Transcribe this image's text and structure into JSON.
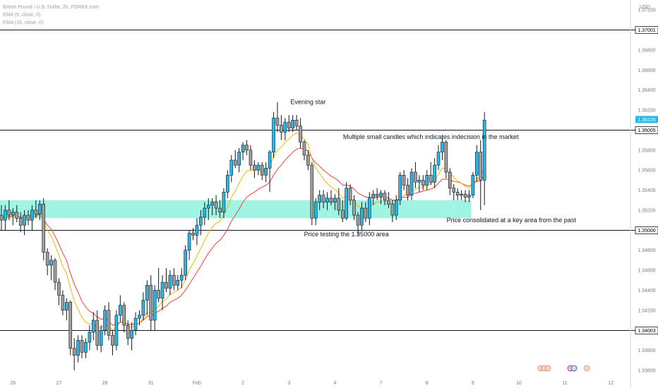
{
  "legend": {
    "symbol": "British Pound / U.S. Dollar, 2h, FOREX.com",
    "ema_fast": "EMA (9, close, 0)",
    "ema_slow": "EMA (18, close, 0)"
  },
  "axis": {
    "currency": "USD"
  },
  "colors": {
    "bull": "#26b8e8",
    "bear": "#9e9e9e",
    "wick": "#131722",
    "ema_fast": "#f5b800",
    "ema_slow": "#f44336",
    "zone": "#7ff0d8",
    "line": "#131722",
    "current": "#26b8e8"
  },
  "chart_data": {
    "type": "candlestick",
    "ylim": [
      1.3355,
      1.373
    ],
    "y_ticks": [
      "1.37200",
      "1.37001",
      "1.36800",
      "1.36600",
      "1.36400",
      "1.36200",
      "1.36106",
      "1.36005",
      "1.35800",
      "1.35600",
      "1.35400",
      "1.35200",
      "1.35000",
      "1.34800",
      "1.34600",
      "1.34400",
      "1.34200",
      "1.34003",
      "1.33800",
      "1.33600"
    ],
    "y_tick_values": [
      1.372,
      1.37001,
      1.368,
      1.366,
      1.364,
      1.362,
      1.36106,
      1.36005,
      1.358,
      1.356,
      1.354,
      1.352,
      1.35,
      1.348,
      1.346,
      1.344,
      1.342,
      1.34003,
      1.338,
      1.336
    ],
    "x_ticks": [
      {
        "label": "26",
        "bar": 3
      },
      {
        "label": "27",
        "bar": 15
      },
      {
        "label": "28",
        "bar": 27
      },
      {
        "label": "31",
        "bar": 39
      },
      {
        "label": "Feb",
        "bar": 51
      },
      {
        "label": "2",
        "bar": 63
      },
      {
        "label": "3",
        "bar": 75
      },
      {
        "label": "4",
        "bar": 87
      },
      {
        "label": "7",
        "bar": 99
      },
      {
        "label": "8",
        "bar": 111
      },
      {
        "label": "9",
        "bar": 123
      },
      {
        "label": "10",
        "bar": 135
      },
      {
        "label": "11",
        "bar": 147
      },
      {
        "label": "12",
        "bar": 159
      }
    ],
    "horizontal_levels": [
      {
        "label": "1.37001",
        "value": 1.37001
      },
      {
        "label": "1.36005",
        "value": 1.36005
      },
      {
        "label": "1.35000",
        "value": 1.35
      },
      {
        "label": "1.34003",
        "value": 1.34003
      }
    ],
    "current_price": {
      "label": "1.36106",
      "value": 1.36106
    },
    "zone": {
      "from": 1.3512,
      "to": 1.353,
      "bar_start": -1,
      "bar_end": 122
    },
    "annotations": [
      {
        "text": "Evening star",
        "bar": 80,
        "value": 1.3626
      },
      {
        "text": "Multiple small candles which indicates indecision in the market",
        "bar": 112,
        "value": 1.3591
      },
      {
        "text": "Price consolidated at a key area from the past",
        "bar": 133,
        "value": 1.3508
      },
      {
        "text": "Price testing the 1.35000 area",
        "bar": 90,
        "value": 1.3494
      }
    ],
    "candles": [
      {
        "o": 1.3515,
        "h": 1.3525,
        "l": 1.35,
        "c": 1.351
      },
      {
        "o": 1.351,
        "h": 1.3525,
        "l": 1.35,
        "c": 1.352
      },
      {
        "o": 1.352,
        "h": 1.353,
        "l": 1.351,
        "c": 1.3515
      },
      {
        "o": 1.3515,
        "h": 1.3522,
        "l": 1.3505,
        "c": 1.3518
      },
      {
        "o": 1.3518,
        "h": 1.3525,
        "l": 1.3508,
        "c": 1.3512
      },
      {
        "o": 1.3512,
        "h": 1.3518,
        "l": 1.3498,
        "c": 1.3505
      },
      {
        "o": 1.3505,
        "h": 1.352,
        "l": 1.3495,
        "c": 1.3515
      },
      {
        "o": 1.3515,
        "h": 1.352,
        "l": 1.3505,
        "c": 1.351
      },
      {
        "o": 1.351,
        "h": 1.3525,
        "l": 1.35,
        "c": 1.352
      },
      {
        "o": 1.352,
        "h": 1.353,
        "l": 1.3512,
        "c": 1.3516
      },
      {
        "o": 1.3516,
        "h": 1.353,
        "l": 1.351,
        "c": 1.3526
      },
      {
        "o": 1.3526,
        "h": 1.3532,
        "l": 1.347,
        "c": 1.3478
      },
      {
        "o": 1.3478,
        "h": 1.3482,
        "l": 1.3455,
        "c": 1.3465
      },
      {
        "o": 1.3465,
        "h": 1.3475,
        "l": 1.345,
        "c": 1.347
      },
      {
        "o": 1.347,
        "h": 1.3472,
        "l": 1.344,
        "c": 1.3448
      },
      {
        "o": 1.3448,
        "h": 1.3452,
        "l": 1.3425,
        "c": 1.3435
      },
      {
        "o": 1.3435,
        "h": 1.344,
        "l": 1.3415,
        "c": 1.342
      },
      {
        "o": 1.342,
        "h": 1.3432,
        "l": 1.341,
        "c": 1.3428
      },
      {
        "o": 1.3428,
        "h": 1.343,
        "l": 1.3375,
        "c": 1.3382
      },
      {
        "o": 1.3382,
        "h": 1.3392,
        "l": 1.336,
        "c": 1.3375
      },
      {
        "o": 1.3375,
        "h": 1.3395,
        "l": 1.3368,
        "c": 1.339
      },
      {
        "o": 1.339,
        "h": 1.3395,
        "l": 1.3372,
        "c": 1.3378
      },
      {
        "o": 1.3378,
        "h": 1.3392,
        "l": 1.3372,
        "c": 1.3388
      },
      {
        "o": 1.3388,
        "h": 1.3405,
        "l": 1.338,
        "c": 1.3398
      },
      {
        "o": 1.3398,
        "h": 1.3418,
        "l": 1.339,
        "c": 1.341
      },
      {
        "o": 1.341,
        "h": 1.342,
        "l": 1.338,
        "c": 1.3385
      },
      {
        "o": 1.3385,
        "h": 1.3405,
        "l": 1.3378,
        "c": 1.34
      },
      {
        "o": 1.34,
        "h": 1.3425,
        "l": 1.3395,
        "c": 1.342
      },
      {
        "o": 1.342,
        "h": 1.3428,
        "l": 1.339,
        "c": 1.3395
      },
      {
        "o": 1.3395,
        "h": 1.34,
        "l": 1.3375,
        "c": 1.3385
      },
      {
        "o": 1.3385,
        "h": 1.342,
        "l": 1.338,
        "c": 1.3415
      },
      {
        "o": 1.3415,
        "h": 1.3435,
        "l": 1.3408,
        "c": 1.3425
      },
      {
        "o": 1.3425,
        "h": 1.3428,
        "l": 1.3398,
        "c": 1.3405
      },
      {
        "o": 1.3405,
        "h": 1.341,
        "l": 1.3385,
        "c": 1.3392
      },
      {
        "o": 1.3392,
        "h": 1.3408,
        "l": 1.338,
        "c": 1.34
      },
      {
        "o": 1.34,
        "h": 1.3418,
        "l": 1.3395,
        "c": 1.3412
      },
      {
        "o": 1.3412,
        "h": 1.342,
        "l": 1.3405,
        "c": 1.3415
      },
      {
        "o": 1.3415,
        "h": 1.3438,
        "l": 1.341,
        "c": 1.343
      },
      {
        "o": 1.343,
        "h": 1.345,
        "l": 1.3415,
        "c": 1.3445
      },
      {
        "o": 1.3445,
        "h": 1.3455,
        "l": 1.34,
        "c": 1.341
      },
      {
        "o": 1.341,
        "h": 1.3445,
        "l": 1.34,
        "c": 1.344
      },
      {
        "o": 1.344,
        "h": 1.3462,
        "l": 1.3428,
        "c": 1.3432
      },
      {
        "o": 1.3432,
        "h": 1.3455,
        "l": 1.342,
        "c": 1.3448
      },
      {
        "o": 1.3448,
        "h": 1.3462,
        "l": 1.3438,
        "c": 1.3442
      },
      {
        "o": 1.3442,
        "h": 1.346,
        "l": 1.3435,
        "c": 1.3455
      },
      {
        "o": 1.3455,
        "h": 1.3462,
        "l": 1.344,
        "c": 1.3445
      },
      {
        "o": 1.3445,
        "h": 1.3455,
        "l": 1.344,
        "c": 1.345
      },
      {
        "o": 1.345,
        "h": 1.3462,
        "l": 1.3442,
        "c": 1.3455
      },
      {
        "o": 1.3455,
        "h": 1.3485,
        "l": 1.345,
        "c": 1.348
      },
      {
        "o": 1.348,
        "h": 1.35,
        "l": 1.347,
        "c": 1.3497
      },
      {
        "o": 1.3497,
        "h": 1.3502,
        "l": 1.349,
        "c": 1.3495
      },
      {
        "o": 1.3495,
        "h": 1.3512,
        "l": 1.3485,
        "c": 1.3505
      },
      {
        "o": 1.3505,
        "h": 1.352,
        "l": 1.3495,
        "c": 1.3513
      },
      {
        "o": 1.3513,
        "h": 1.3528,
        "l": 1.3505,
        "c": 1.3522
      },
      {
        "o": 1.3522,
        "h": 1.3532,
        "l": 1.351,
        "c": 1.3525
      },
      {
        "o": 1.3525,
        "h": 1.3532,
        "l": 1.3515,
        "c": 1.3528
      },
      {
        "o": 1.3528,
        "h": 1.3535,
        "l": 1.3515,
        "c": 1.3522
      },
      {
        "o": 1.3522,
        "h": 1.353,
        "l": 1.3512,
        "c": 1.3518
      },
      {
        "o": 1.3518,
        "h": 1.3542,
        "l": 1.3512,
        "c": 1.3538
      },
      {
        "o": 1.3538,
        "h": 1.356,
        "l": 1.3532,
        "c": 1.3555
      },
      {
        "o": 1.3555,
        "h": 1.3575,
        "l": 1.3548,
        "c": 1.357
      },
      {
        "o": 1.357,
        "h": 1.358,
        "l": 1.3562,
        "c": 1.3565
      },
      {
        "o": 1.3565,
        "h": 1.3582,
        "l": 1.3558,
        "c": 1.3578
      },
      {
        "o": 1.3578,
        "h": 1.3588,
        "l": 1.357,
        "c": 1.3585
      },
      {
        "o": 1.3585,
        "h": 1.359,
        "l": 1.3575,
        "c": 1.358
      },
      {
        "o": 1.358,
        "h": 1.3585,
        "l": 1.356,
        "c": 1.3565
      },
      {
        "o": 1.3565,
        "h": 1.357,
        "l": 1.3552,
        "c": 1.356
      },
      {
        "o": 1.356,
        "h": 1.3568,
        "l": 1.3555,
        "c": 1.3565
      },
      {
        "o": 1.3565,
        "h": 1.3568,
        "l": 1.355,
        "c": 1.3555
      },
      {
        "o": 1.3555,
        "h": 1.3568,
        "l": 1.3548,
        "c": 1.3562
      },
      {
        "o": 1.3562,
        "h": 1.358,
        "l": 1.3538,
        "c": 1.3578
      },
      {
        "o": 1.3578,
        "h": 1.3618,
        "l": 1.3572,
        "c": 1.3612
      },
      {
        "o": 1.3612,
        "h": 1.3628,
        "l": 1.3598,
        "c": 1.3605
      },
      {
        "o": 1.3605,
        "h": 1.3615,
        "l": 1.359,
        "c": 1.3598
      },
      {
        "o": 1.3598,
        "h": 1.3612,
        "l": 1.359,
        "c": 1.3608
      },
      {
        "o": 1.3608,
        "h": 1.3615,
        "l": 1.3598,
        "c": 1.3602
      },
      {
        "o": 1.3602,
        "h": 1.3615,
        "l": 1.3598,
        "c": 1.361
      },
      {
        "o": 1.361,
        "h": 1.3615,
        "l": 1.36,
        "c": 1.3604
      },
      {
        "o": 1.3604,
        "h": 1.3612,
        "l": 1.3582,
        "c": 1.3588
      },
      {
        "o": 1.3588,
        "h": 1.359,
        "l": 1.357,
        "c": 1.3575
      },
      {
        "o": 1.3575,
        "h": 1.358,
        "l": 1.356,
        "c": 1.3565
      },
      {
        "o": 1.3565,
        "h": 1.3568,
        "l": 1.3505,
        "c": 1.3512
      },
      {
        "o": 1.3512,
        "h": 1.3532,
        "l": 1.3505,
        "c": 1.3528
      },
      {
        "o": 1.3528,
        "h": 1.354,
        "l": 1.352,
        "c": 1.3535
      },
      {
        "o": 1.3535,
        "h": 1.354,
        "l": 1.3522,
        "c": 1.3528
      },
      {
        "o": 1.3528,
        "h": 1.3538,
        "l": 1.352,
        "c": 1.3532
      },
      {
        "o": 1.3532,
        "h": 1.354,
        "l": 1.3525,
        "c": 1.3528
      },
      {
        "o": 1.3528,
        "h": 1.3536,
        "l": 1.352,
        "c": 1.3532
      },
      {
        "o": 1.3532,
        "h": 1.3542,
        "l": 1.3515,
        "c": 1.352
      },
      {
        "o": 1.352,
        "h": 1.353,
        "l": 1.3508,
        "c": 1.3512
      },
      {
        "o": 1.3512,
        "h": 1.3548,
        "l": 1.351,
        "c": 1.3542
      },
      {
        "o": 1.3542,
        "h": 1.3546,
        "l": 1.3525,
        "c": 1.353
      },
      {
        "o": 1.353,
        "h": 1.3535,
        "l": 1.351,
        "c": 1.3515
      },
      {
        "o": 1.3515,
        "h": 1.3518,
        "l": 1.3495,
        "c": 1.3505
      },
      {
        "o": 1.3505,
        "h": 1.3528,
        "l": 1.35,
        "c": 1.3522
      },
      {
        "o": 1.3522,
        "h": 1.3528,
        "l": 1.3508,
        "c": 1.3512
      },
      {
        "o": 1.3512,
        "h": 1.3538,
        "l": 1.3505,
        "c": 1.3532
      },
      {
        "o": 1.3532,
        "h": 1.354,
        "l": 1.3525,
        "c": 1.3536
      },
      {
        "o": 1.3536,
        "h": 1.3542,
        "l": 1.353,
        "c": 1.3534
      },
      {
        "o": 1.3534,
        "h": 1.354,
        "l": 1.3526,
        "c": 1.3537
      },
      {
        "o": 1.3537,
        "h": 1.354,
        "l": 1.3525,
        "c": 1.353
      },
      {
        "o": 1.353,
        "h": 1.3538,
        "l": 1.3522,
        "c": 1.3526
      },
      {
        "o": 1.3526,
        "h": 1.353,
        "l": 1.3508,
        "c": 1.3515
      },
      {
        "o": 1.3515,
        "h": 1.3535,
        "l": 1.351,
        "c": 1.353
      },
      {
        "o": 1.353,
        "h": 1.3558,
        "l": 1.3525,
        "c": 1.3555
      },
      {
        "o": 1.3555,
        "h": 1.356,
        "l": 1.354,
        "c": 1.3545
      },
      {
        "o": 1.3545,
        "h": 1.3552,
        "l": 1.353,
        "c": 1.3535
      },
      {
        "o": 1.3535,
        "h": 1.3562,
        "l": 1.353,
        "c": 1.3558
      },
      {
        "o": 1.3558,
        "h": 1.3568,
        "l": 1.3542,
        "c": 1.3548
      },
      {
        "o": 1.3548,
        "h": 1.3555,
        "l": 1.3538,
        "c": 1.355
      },
      {
        "o": 1.355,
        "h": 1.3555,
        "l": 1.354,
        "c": 1.3545
      },
      {
        "o": 1.3545,
        "h": 1.356,
        "l": 1.354,
        "c": 1.3555
      },
      {
        "o": 1.3555,
        "h": 1.3568,
        "l": 1.3545,
        "c": 1.3548
      },
      {
        "o": 1.3548,
        "h": 1.3572,
        "l": 1.3542,
        "c": 1.3565
      },
      {
        "o": 1.3565,
        "h": 1.3585,
        "l": 1.356,
        "c": 1.3578
      },
      {
        "o": 1.3578,
        "h": 1.3595,
        "l": 1.357,
        "c": 1.3588
      },
      {
        "o": 1.3588,
        "h": 1.359,
        "l": 1.3552,
        "c": 1.3558
      },
      {
        "o": 1.3558,
        "h": 1.3562,
        "l": 1.3535,
        "c": 1.3542
      },
      {
        "o": 1.3542,
        "h": 1.3546,
        "l": 1.353,
        "c": 1.3538
      },
      {
        "o": 1.3538,
        "h": 1.3542,
        "l": 1.353,
        "c": 1.3535
      },
      {
        "o": 1.3535,
        "h": 1.354,
        "l": 1.353,
        "c": 1.3536
      },
      {
        "o": 1.3536,
        "h": 1.354,
        "l": 1.3528,
        "c": 1.3533
      },
      {
        "o": 1.3533,
        "h": 1.354,
        "l": 1.3528,
        "c": 1.3535
      },
      {
        "o": 1.3535,
        "h": 1.3558,
        "l": 1.3532,
        "c": 1.3555
      },
      {
        "o": 1.3555,
        "h": 1.3585,
        "l": 1.3548,
        "c": 1.3578
      },
      {
        "o": 1.3578,
        "h": 1.359,
        "l": 1.352,
        "c": 1.355
      },
      {
        "o": 1.355,
        "h": 1.3618,
        "l": 1.3525,
        "c": 1.361
      }
    ],
    "ema_fast": [
      1.3511,
      1.3513,
      1.3514,
      1.3514,
      1.3514,
      1.3512,
      1.3513,
      1.3513,
      1.3514,
      1.3515,
      1.3517,
      1.3509,
      1.35,
      1.3494,
      1.3485,
      1.3475,
      1.3464,
      1.3457,
      1.3442,
      1.3429,
      1.3421,
      1.3413,
      1.3408,
      1.3406,
      1.3407,
      1.3403,
      1.3402,
      1.3406,
      1.3404,
      1.34,
      1.3403,
      1.3408,
      1.3407,
      1.3404,
      1.3403,
      1.3405,
      1.3407,
      1.3412,
      1.3418,
      1.3417,
      1.3421,
      1.3424,
      1.3429,
      1.3431,
      1.3436,
      1.3438,
      1.344,
      1.3443,
      1.345,
      1.346,
      1.3467,
      1.3474,
      1.3482,
      1.349,
      1.3497,
      1.3503,
      1.3507,
      1.3509,
      1.3515,
      1.3523,
      1.3533,
      1.3539,
      1.3547,
      1.3554,
      1.3559,
      1.356,
      1.356,
      1.3561,
      1.356,
      1.356,
      1.3564,
      1.3573,
      1.358,
      1.3583,
      1.3588,
      1.3591,
      1.3595,
      1.3597,
      1.3595,
      1.3591,
      1.3586,
      1.3571,
      1.3562,
      1.3557,
      1.3551,
      1.3547,
      1.3543,
      1.3541,
      1.3537,
      1.3532,
      1.3534,
      1.3533,
      1.3529,
      1.3524,
      1.3523,
      1.3521,
      1.3523,
      1.3526,
      1.3528,
      1.3529,
      1.3529,
      1.3529,
      1.3526,
      1.3527,
      1.3532,
      1.3535,
      1.3535,
      1.3539,
      1.3541,
      1.3543,
      1.3543,
      1.3546,
      1.3546,
      1.355,
      1.3556,
      1.3562,
      1.3561,
      1.3557,
      1.3553,
      1.3549,
      1.3547,
      1.3544,
      1.3542,
      1.3545,
      1.3552,
      1.3552,
      1.3563
    ],
    "ema_slow": [
      1.3512,
      1.3513,
      1.3513,
      1.3514,
      1.3514,
      1.3513,
      1.3513,
      1.3513,
      1.3514,
      1.3514,
      1.3516,
      1.3511,
      1.3505,
      1.3501,
      1.3494,
      1.3486,
      1.3477,
      1.347,
      1.3457,
      1.3446,
      1.3438,
      1.3429,
      1.3423,
      1.3419,
      1.3417,
      1.3413,
      1.3411,
      1.3412,
      1.3409,
      1.3405,
      1.3406,
      1.3408,
      1.3408,
      1.3406,
      1.3406,
      1.3406,
      1.3407,
      1.341,
      1.3414,
      1.3414,
      1.3417,
      1.3419,
      1.3422,
      1.3424,
      1.3428,
      1.343,
      1.3432,
      1.3435,
      1.344,
      1.3446,
      1.3452,
      1.3458,
      1.3464,
      1.3471,
      1.3477,
      1.3482,
      1.3487,
      1.349,
      1.3495,
      1.3501,
      1.3509,
      1.3515,
      1.3521,
      1.3528,
      1.3533,
      1.3536,
      1.3538,
      1.3541,
      1.3543,
      1.3545,
      1.3548,
      1.3555,
      1.3561,
      1.3565,
      1.357,
      1.3574,
      1.3578,
      1.3581,
      1.3582,
      1.3581,
      1.3579,
      1.3572,
      1.3567,
      1.3564,
      1.356,
      1.3557,
      1.3554,
      1.3552,
      1.3549,
      1.3545,
      1.3545,
      1.3544,
      1.3541,
      1.3537,
      1.3535,
      1.3533,
      1.3533,
      1.3533,
      1.3533,
      1.3533,
      1.3533,
      1.3532,
      1.353,
      1.353,
      1.3532,
      1.3533,
      1.3533,
      1.3536,
      1.3537,
      1.3538,
      1.3539,
      1.354,
      1.3541,
      1.3543,
      1.3547,
      1.3551,
      1.3551,
      1.355,
      1.3549,
      1.3548,
      1.3547,
      1.3545,
      1.3544,
      1.3546,
      1.3549,
      1.3549,
      1.3556
    ]
  }
}
